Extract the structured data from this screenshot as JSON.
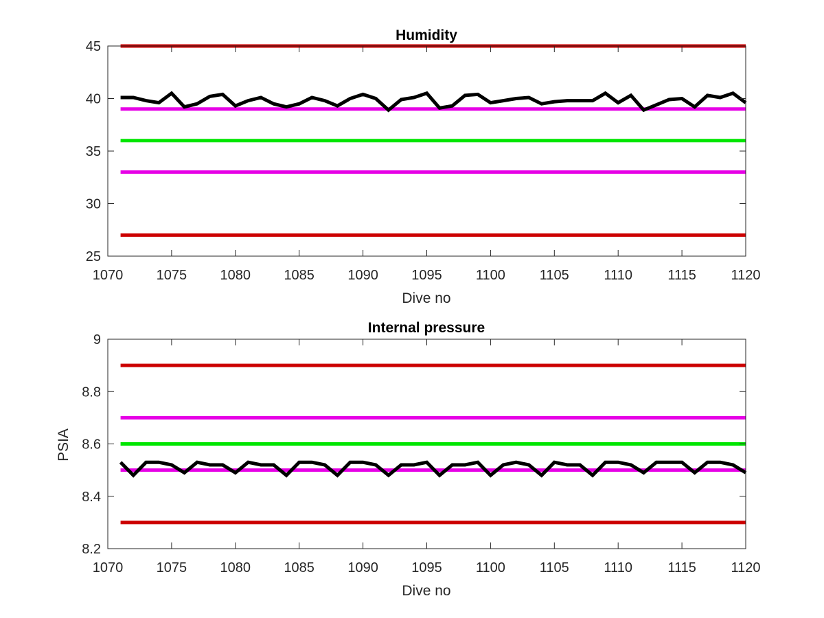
{
  "chart_data": [
    {
      "type": "line",
      "title": "Humidity",
      "xlabel": "Dive no",
      "ylabel": "",
      "xlim": [
        1070,
        1120
      ],
      "ylim": [
        25,
        45
      ],
      "xticks": [
        1070,
        1075,
        1080,
        1085,
        1090,
        1095,
        1100,
        1105,
        1110,
        1115,
        1120
      ],
      "yticks": [
        25,
        30,
        35,
        40,
        45
      ],
      "grid": false,
      "reference_lines": [
        {
          "y": 45,
          "color": "#cc0000"
        },
        {
          "y": 39,
          "color": "#e600e6"
        },
        {
          "y": 36,
          "color": "#00e600"
        },
        {
          "y": 33,
          "color": "#e600e6"
        },
        {
          "y": 27,
          "color": "#cc0000"
        }
      ],
      "series": [
        {
          "color": "#000000",
          "x": [
            1071,
            1072,
            1073,
            1074,
            1075,
            1076,
            1077,
            1078,
            1079,
            1080,
            1081,
            1082,
            1083,
            1084,
            1085,
            1086,
            1087,
            1088,
            1089,
            1090,
            1091,
            1092,
            1093,
            1094,
            1095,
            1096,
            1097,
            1098,
            1099,
            1100,
            1101,
            1102,
            1103,
            1104,
            1105,
            1106,
            1107,
            1108,
            1109,
            1110,
            1111,
            1112,
            1113,
            1114,
            1115,
            1116,
            1117,
            1118,
            1119,
            1120
          ],
          "y": [
            40.1,
            40.1,
            39.8,
            39.6,
            40.5,
            39.2,
            39.5,
            40.2,
            40.4,
            39.3,
            39.8,
            40.1,
            39.5,
            39.2,
            39.5,
            40.1,
            39.8,
            39.3,
            40.0,
            40.4,
            40.0,
            38.9,
            39.9,
            40.1,
            40.5,
            39.1,
            39.3,
            40.3,
            40.4,
            39.6,
            39.8,
            40.0,
            40.1,
            39.5,
            39.7,
            39.8,
            39.8,
            39.8,
            40.5,
            39.6,
            40.3,
            38.9,
            39.4,
            39.9,
            40.0,
            39.2,
            40.3,
            40.1,
            40.5,
            39.6
          ]
        }
      ]
    },
    {
      "type": "line",
      "title": "Internal pressure",
      "xlabel": "Dive no",
      "ylabel": "PSIA",
      "xlim": [
        1070,
        1120
      ],
      "ylim": [
        8.2,
        9
      ],
      "xticks": [
        1070,
        1075,
        1080,
        1085,
        1090,
        1095,
        1100,
        1105,
        1110,
        1115,
        1120
      ],
      "yticks": [
        "8.2",
        "8.4",
        "8.6",
        "8.8",
        "9"
      ],
      "grid": false,
      "reference_lines": [
        {
          "y": 8.9,
          "color": "#cc0000"
        },
        {
          "y": 8.7,
          "color": "#e600e6"
        },
        {
          "y": 8.6,
          "color": "#00e600"
        },
        {
          "y": 8.5,
          "color": "#e600e6"
        },
        {
          "y": 8.3,
          "color": "#cc0000"
        }
      ],
      "series": [
        {
          "color": "#000000",
          "x": [
            1071,
            1072,
            1073,
            1074,
            1075,
            1076,
            1077,
            1078,
            1079,
            1080,
            1081,
            1082,
            1083,
            1084,
            1085,
            1086,
            1087,
            1088,
            1089,
            1090,
            1091,
            1092,
            1093,
            1094,
            1095,
            1096,
            1097,
            1098,
            1099,
            1100,
            1101,
            1102,
            1103,
            1104,
            1105,
            1106,
            1107,
            1108,
            1109,
            1110,
            1111,
            1112,
            1113,
            1114,
            1115,
            1116,
            1117,
            1118,
            1119,
            1120
          ],
          "y": [
            8.53,
            8.48,
            8.53,
            8.53,
            8.52,
            8.49,
            8.53,
            8.52,
            8.52,
            8.49,
            8.53,
            8.52,
            8.52,
            8.48,
            8.53,
            8.53,
            8.52,
            8.48,
            8.53,
            8.53,
            8.52,
            8.48,
            8.52,
            8.52,
            8.53,
            8.48,
            8.52,
            8.52,
            8.53,
            8.48,
            8.52,
            8.53,
            8.52,
            8.48,
            8.53,
            8.52,
            8.52,
            8.48,
            8.53,
            8.53,
            8.52,
            8.49,
            8.53,
            8.53,
            8.53,
            8.49,
            8.53,
            8.53,
            8.52,
            8.49
          ]
        }
      ]
    }
  ]
}
